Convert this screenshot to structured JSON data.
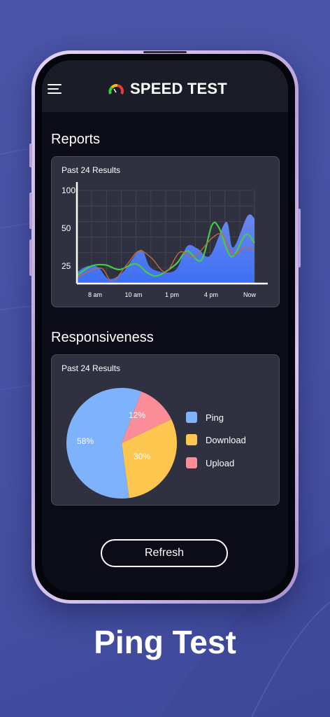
{
  "app": {
    "title": "SPEED TEST"
  },
  "reports": {
    "title": "Reports",
    "subtitle": "Past 24  Results"
  },
  "responsiveness": {
    "title": "Responsiveness",
    "subtitle": "Past 24  Results"
  },
  "refresh_label": "Refresh",
  "caption": "Ping Test",
  "colors": {
    "background": "#4651a3",
    "screen": "#0b0c17",
    "card": "#2f3140",
    "area_fill": "#6e8df5",
    "green_line": "#44cc44",
    "orange_line": "#c4683a",
    "ping": "#7eb3fb",
    "download": "#fdc64f",
    "upload": "#fb8d99"
  },
  "chart_data": [
    {
      "type": "area",
      "title": "",
      "x": [
        "8 am",
        "10 am",
        "1 pm",
        "4 pm",
        "Now"
      ],
      "yticks": [
        25,
        50,
        100
      ],
      "ylim": [
        20,
        100
      ],
      "grid": true,
      "series": [
        {
          "kind": "area",
          "points": [
            [
              0,
              30
            ],
            [
              6,
              35
            ],
            [
              12,
              34
            ],
            [
              18,
              24
            ],
            [
              26,
              30
            ],
            [
              36,
              49
            ],
            [
              42,
              33
            ],
            [
              55,
              31
            ],
            [
              62,
              52
            ],
            [
              68,
              50
            ],
            [
              75,
              44
            ],
            [
              84,
              73
            ],
            [
              88,
              51
            ],
            [
              96,
              78
            ],
            [
              100,
              76
            ]
          ]
        },
        {
          "kind": "line",
          "color": "green",
          "points": [
            [
              0,
              27
            ],
            [
              8,
              35
            ],
            [
              16,
              36
            ],
            [
              24,
              32
            ],
            [
              33,
              37
            ],
            [
              40,
              29
            ],
            [
              46,
              27
            ],
            [
              56,
              37
            ],
            [
              62,
              48
            ],
            [
              70,
              40
            ],
            [
              76,
              70
            ],
            [
              80,
              68
            ],
            [
              87,
              43
            ],
            [
              95,
              62
            ],
            [
              100,
              55
            ]
          ]
        },
        {
          "kind": "line",
          "color": "orange",
          "points": [
            [
              0,
              25
            ],
            [
              6,
              30
            ],
            [
              14,
              33
            ],
            [
              20,
              22
            ],
            [
              28,
              36
            ],
            [
              35,
              48
            ],
            [
              42,
              42
            ],
            [
              50,
              30
            ],
            [
              58,
              47
            ],
            [
              66,
              43
            ],
            [
              76,
              59
            ],
            [
              82,
              62
            ],
            [
              88,
              45
            ],
            [
              94,
              51
            ],
            [
              100,
              49
            ]
          ]
        }
      ]
    },
    {
      "type": "pie",
      "categories": [
        "Ping",
        "Download",
        "Upload"
      ],
      "values": [
        58,
        30,
        12
      ],
      "labels": [
        "58%",
        "30%",
        "12%"
      ],
      "legend": "right"
    }
  ]
}
